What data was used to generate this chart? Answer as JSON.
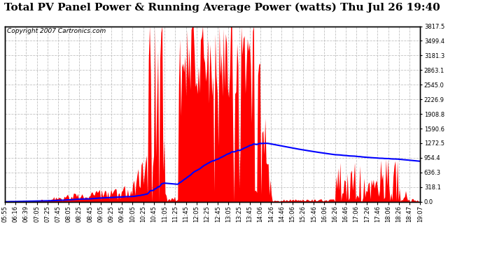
{
  "title": "Total PV Panel Power & Running Average Power (watts) Thu Jul 26 19:40",
  "copyright_text": "Copyright 2007 Cartronics.com",
  "ylabel_right": [
    "3817.5",
    "3499.4",
    "3181.3",
    "2863.1",
    "2545.0",
    "2226.9",
    "1908.8",
    "1590.6",
    "1272.5",
    "954.4",
    "636.3",
    "318.1",
    "0.0"
  ],
  "y_max": 3817.5,
  "y_min": 0.0,
  "background_color": "#ffffff",
  "plot_bg_color": "#ffffff",
  "grid_color": "#bbbbbb",
  "fill_color": "#ff0000",
  "line_color": "#0000ff",
  "title_fontsize": 11,
  "copyright_fontsize": 6.5,
  "tick_fontsize": 6.0,
  "xtick_labels": [
    "05:55",
    "06:16",
    "06:39",
    "07:05",
    "07:25",
    "07:45",
    "08:05",
    "08:25",
    "08:45",
    "09:05",
    "09:25",
    "09:45",
    "10:05",
    "10:25",
    "10:45",
    "11:05",
    "11:25",
    "11:45",
    "12:05",
    "12:25",
    "12:45",
    "13:05",
    "13:25",
    "13:45",
    "14:06",
    "14:26",
    "14:46",
    "15:06",
    "15:26",
    "15:46",
    "16:06",
    "16:26",
    "16:46",
    "17:06",
    "17:26",
    "17:46",
    "18:06",
    "18:26",
    "18:47",
    "19:07"
  ]
}
